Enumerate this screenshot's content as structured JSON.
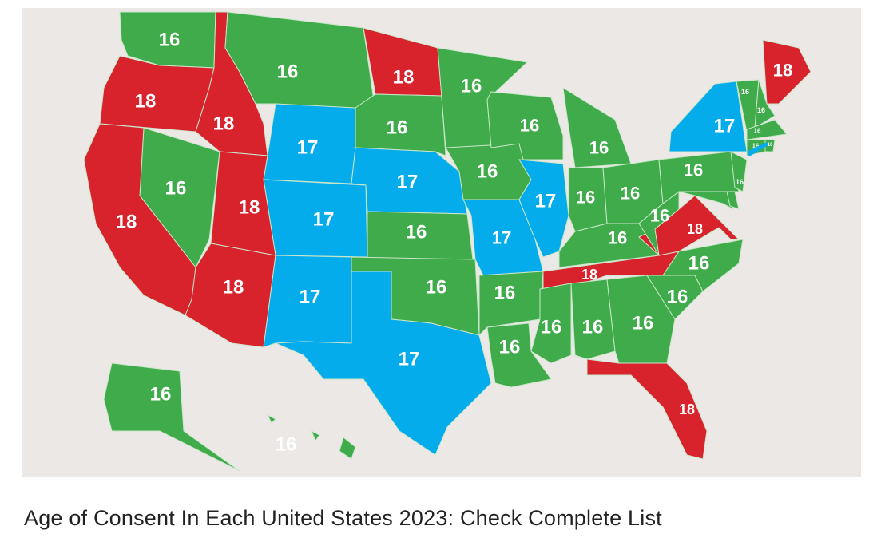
{
  "caption": "Age of Consent In Each United States 2023: Check Complete List",
  "colors": {
    "16": "#3fab4a",
    "17": "#04acec",
    "18": "#d8232c",
    "border": "#c9e6c9",
    "background": "#ebe8e5",
    "hawaii_label": "#9a9a9a"
  },
  "regions": [
    {
      "label": "16"
    },
    {
      "label": "18"
    },
    {
      "label": "18"
    },
    {
      "label": "16"
    },
    {
      "label": "18"
    },
    {
      "label": "16"
    },
    {
      "label": "17"
    },
    {
      "label": "17"
    },
    {
      "label": "17"
    },
    {
      "label": "16"
    },
    {
      "label": "16"
    },
    {
      "label": "18"
    },
    {
      "label": "18"
    },
    {
      "label": "18"
    },
    {
      "label": "17"
    },
    {
      "label": "16"
    },
    {
      "label": "17"
    },
    {
      "label": "16"
    },
    {
      "label": "16"
    },
    {
      "label": "17"
    },
    {
      "label": "16"
    },
    {
      "label": "16"
    },
    {
      "label": "16"
    },
    {
      "label": "17"
    },
    {
      "label": "16"
    },
    {
      "label": "16"
    },
    {
      "label": "16"
    },
    {
      "label": "16"
    },
    {
      "label": "18"
    },
    {
      "label": "16"
    },
    {
      "label": "16"
    },
    {
      "label": "16"
    },
    {
      "label": "18"
    },
    {
      "label": "16"
    },
    {
      "label": "16"
    },
    {
      "label": "18"
    },
    {
      "label": "16"
    },
    {
      "label": "16"
    },
    {
      "label": "17"
    },
    {
      "label": "16"
    },
    {
      "label": "16"
    },
    {
      "label": "18"
    },
    {
      "label": "16"
    },
    {
      "label": "16"
    },
    {
      "label": "16"
    },
    {
      "label": "16"
    },
    {
      "label": "16"
    },
    {
      "label": "16"
    },
    {
      "label": "16"
    },
    {
      "label": "16"
    }
  ]
}
